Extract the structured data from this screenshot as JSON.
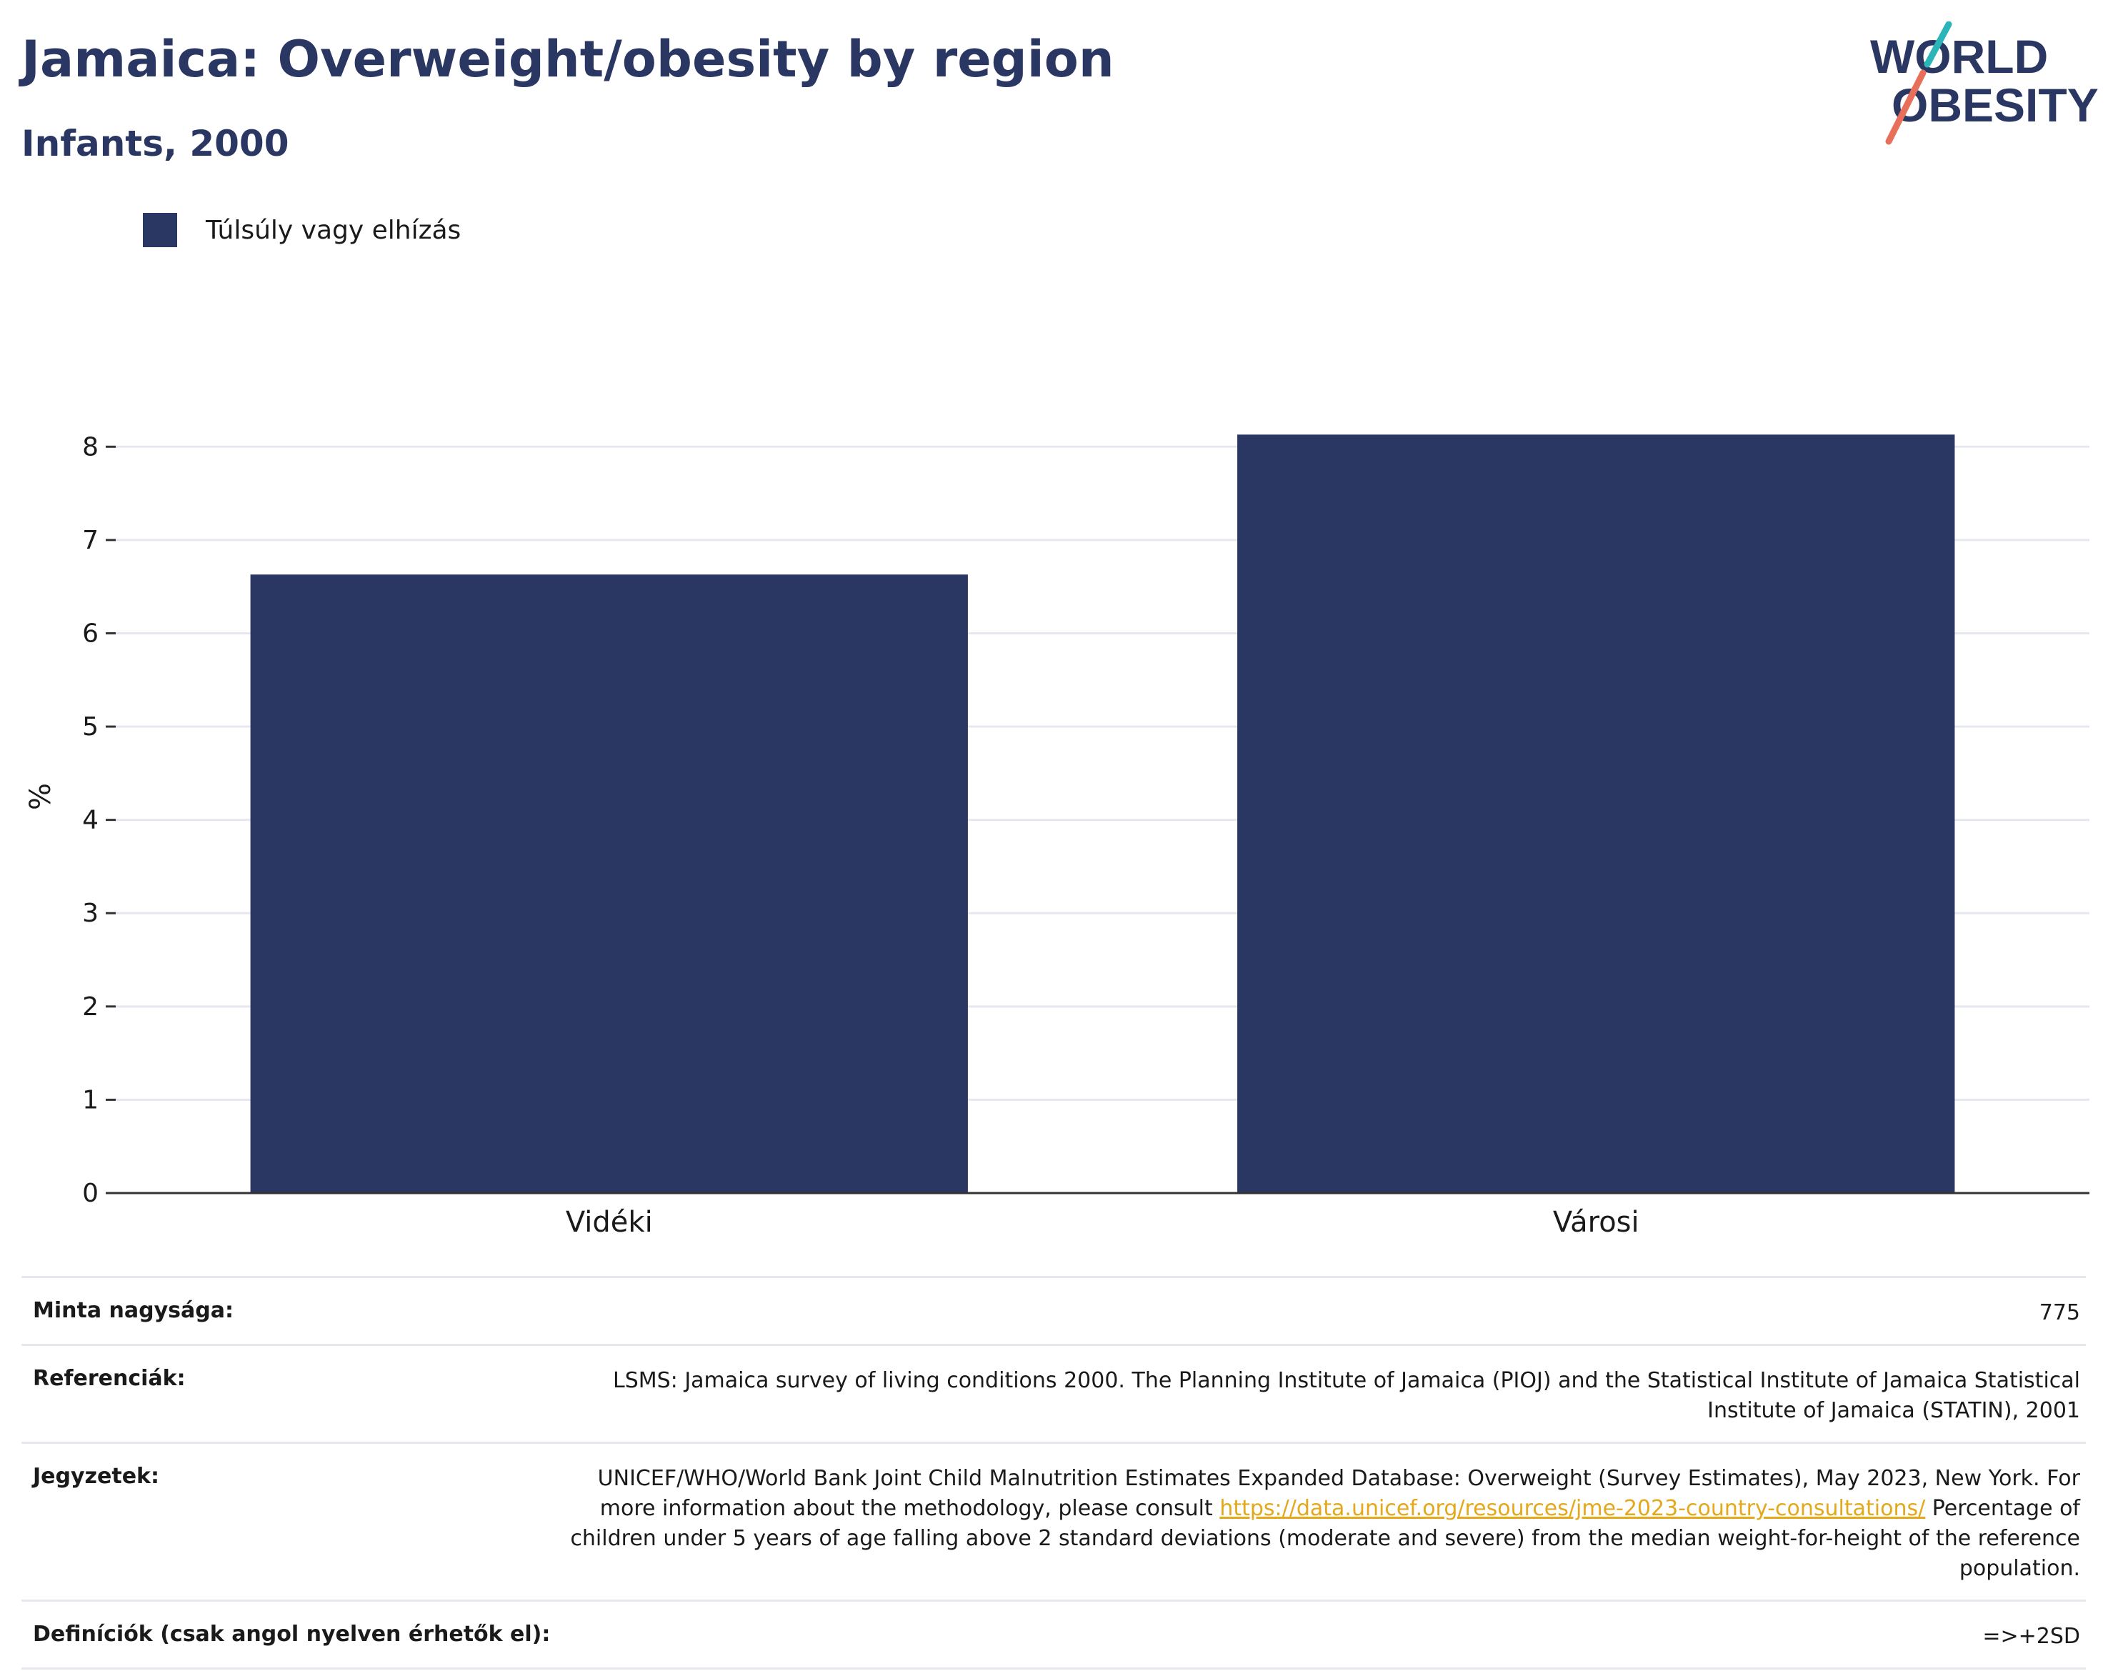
{
  "title": "Jamaica: Overweight/obesity by region",
  "subtitle": "Infants, 2000",
  "logo": {
    "line1": "WORLD",
    "line2": "OBESITY"
  },
  "legend": {
    "label": "Túlsúly vagy elhízás"
  },
  "chart_data": {
    "type": "bar",
    "categories": [
      "Vidéki",
      "Városi"
    ],
    "series": [
      {
        "name": "Túlsúly vagy elhízás",
        "values": [
          6.63,
          8.13
        ]
      }
    ],
    "ylabel": "%",
    "ylim": [
      0,
      8.5
    ],
    "yticks": [
      0,
      1,
      2,
      3,
      4,
      5,
      6,
      7,
      8
    ],
    "grid": true,
    "legend_position": "top-left",
    "bar_color": "#2b3763"
  },
  "meta": {
    "sample_label": "Minta nagysága:",
    "sample_value": "775",
    "references_label": "Referenciák:",
    "references_value": "LSMS: Jamaica survey of living conditions 2000. The Planning Institute of Jamaica (PIOJ) and the Statistical Institute of Jamaica Statistical Institute of Jamaica (STATIN), 2001",
    "notes_label": "Jegyzetek:",
    "notes_text1": "UNICEF/WHO/World Bank Joint Child Malnutrition Estimates Expanded Database: Overweight (Survey Estimates), May 2023, New York. For more information about the methodology, please consult",
    "notes_link": "https://data.unicef.org/resources/jme-2023-country-consultations/",
    "notes_text2": "Percentage of children under 5 years of age falling above 2 standard deviations (moderate and severe) from the median weight-for-height of the reference population.",
    "definitions_label": "Definíciók (csak angol nyelven érhetők el):",
    "definitions_value": "=>+2SD"
  },
  "colors": {
    "brand_navy": "#2b3763",
    "logo_teal": "#2bb5b8",
    "logo_coral": "#e8705a",
    "link": "#e5a81b"
  }
}
